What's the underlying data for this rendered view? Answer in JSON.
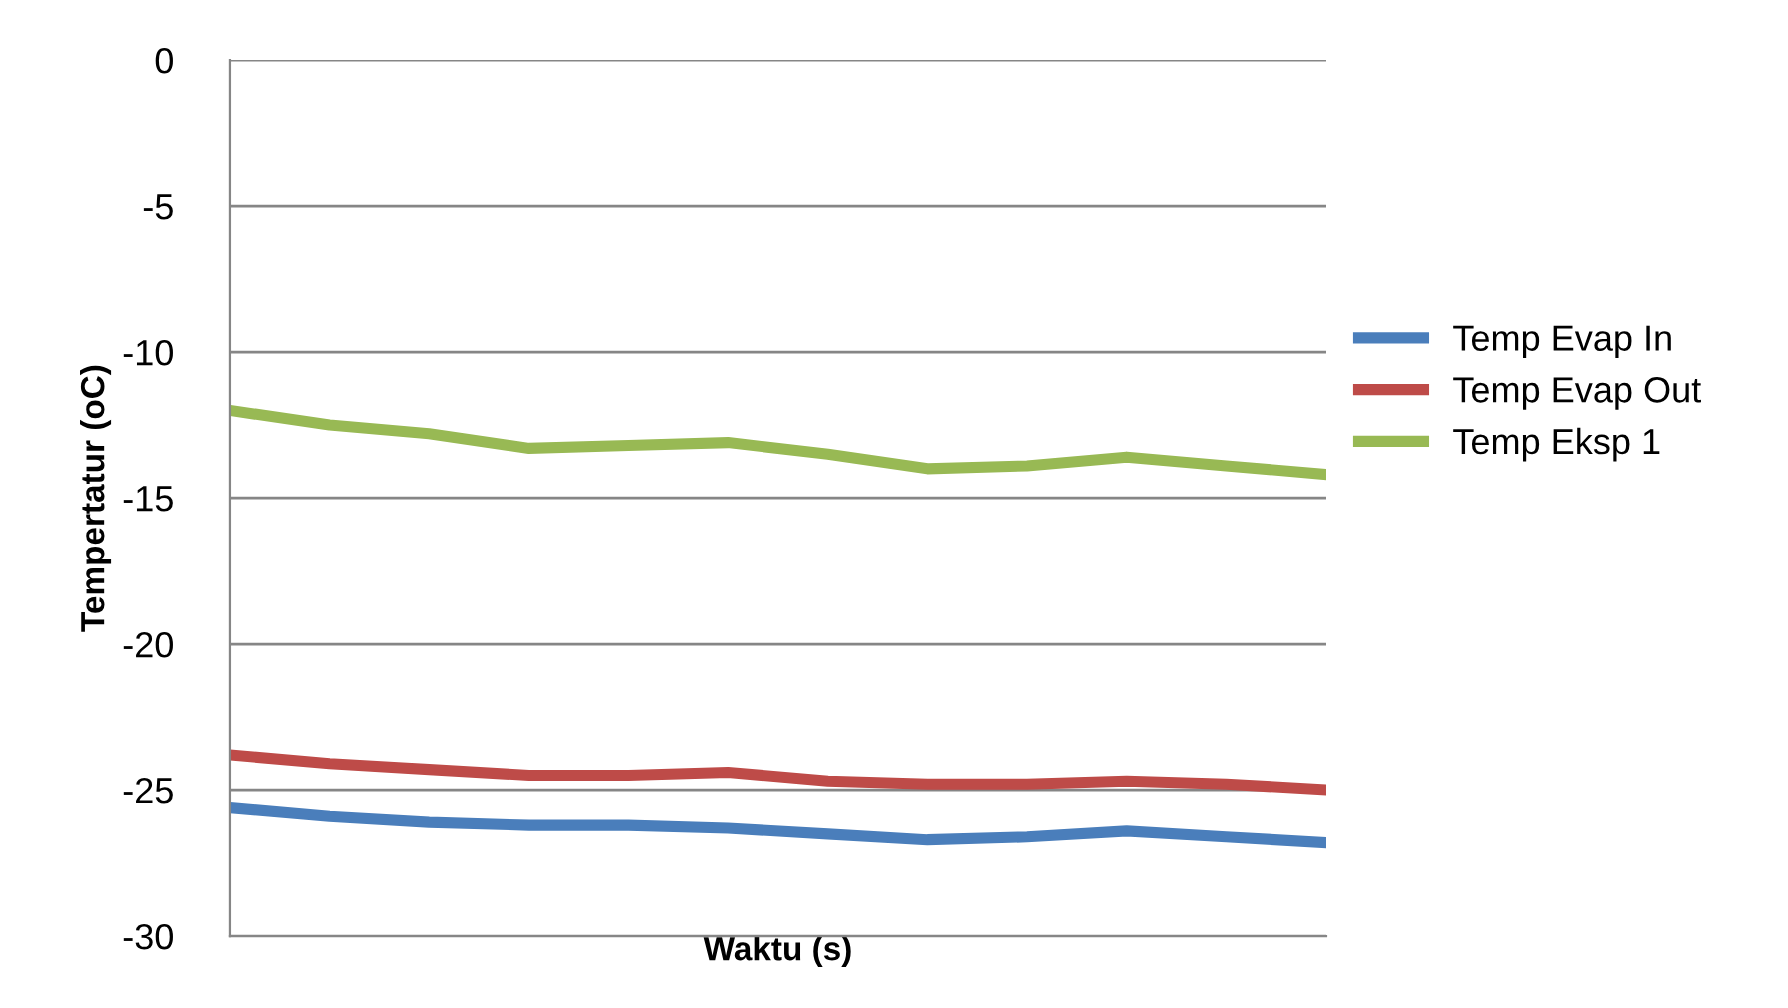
{
  "chart_data": {
    "type": "line",
    "ylabel": "Tempertatur (oC)",
    "xlabel": "Waktu (s)",
    "categories": [
      null,
      null,
      null,
      null,
      null,
      null,
      null,
      null,
      null,
      null,
      null,
      null
    ],
    "series": [
      {
        "name": "Temp Evap In",
        "color": "#4a7ebb",
        "values": [
          -25.6,
          -25.9,
          -26.1,
          -26.2,
          -26.2,
          -26.3,
          -26.5,
          -26.7,
          -26.6,
          -26.4,
          -26.6,
          -26.8
        ]
      },
      {
        "name": "Temp Evap Out",
        "color": "#be4b48",
        "values": [
          -23.8,
          -24.1,
          -24.3,
          -24.5,
          -24.5,
          -24.4,
          -24.7,
          -24.8,
          -24.8,
          -24.7,
          -24.8,
          -25.0
        ]
      },
      {
        "name": "Temp Eksp 1",
        "color": "#98b954",
        "values": [
          -12.0,
          -12.5,
          -12.8,
          -13.3,
          -13.2,
          -13.1,
          -13.5,
          -14.0,
          -13.9,
          -13.6,
          -13.9,
          -14.2
        ]
      }
    ],
    "ylim": [
      -30,
      0
    ],
    "yticks": [
      -30,
      -25,
      -20,
      -15,
      -10,
      -5,
      0
    ],
    "grid": "y",
    "legend": "right",
    "tick_labels": "y",
    "marker": "none",
    "line_style": "solid"
  }
}
